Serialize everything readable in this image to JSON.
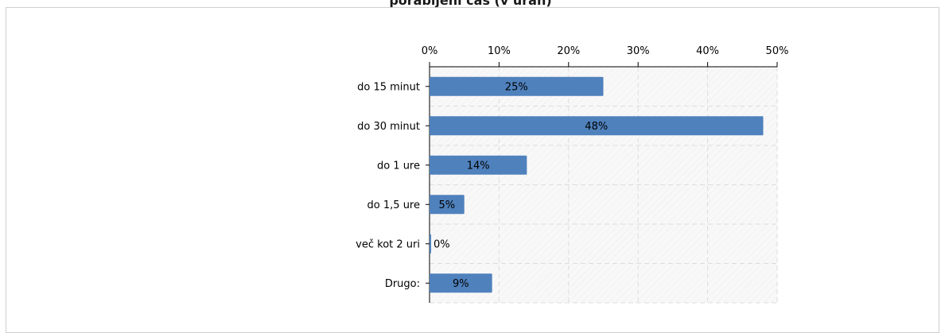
{
  "chart_data": {
    "type": "bar",
    "orientation": "horizontal",
    "title": "porabljeni čas (v urah)",
    "categories": [
      "do 15 minut",
      "do 30 minut",
      "do 1 ure",
      "do 1,5 ure",
      "več kot 2 uri",
      "Drugo:"
    ],
    "values": [
      25,
      48,
      14,
      5,
      0,
      9
    ],
    "data_labels": [
      "25%",
      "48%",
      "14%",
      "5%",
      "0%",
      "9%"
    ],
    "xlim": [
      0,
      50
    ],
    "x_ticks": [
      0,
      10,
      20,
      30,
      40,
      50
    ],
    "x_tick_labels": [
      "0%",
      "10%",
      "20%",
      "30%",
      "40%",
      "50%"
    ],
    "xlabel": "",
    "ylabel": "",
    "grid": true,
    "legend": "none",
    "colors": {
      "bar": "#4f81bd",
      "grid": "#dddddd",
      "axis": "#000000",
      "plot_background": "#f7f7f7"
    }
  }
}
